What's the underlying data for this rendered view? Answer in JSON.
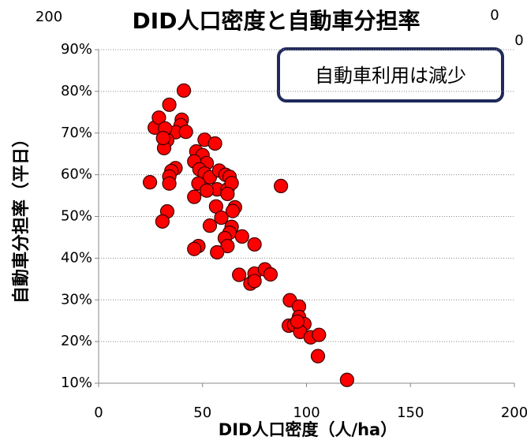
{
  "chart_data": {
    "type": "scatter",
    "title": "DID人口密度と自動車分担率",
    "x_label": "DID人口密度（人/ha）",
    "y_label": "自動車分担率（平日）",
    "annotation": "自動車利用は減少",
    "stray_labels": [
      "200",
      "0",
      "0"
    ],
    "series": [
      {
        "name": "DID",
        "color": "#ff0000",
        "x": [
          41,
          34,
          27,
          29,
          40,
          39.5,
          37,
          42,
          32,
          33,
          31.5,
          31,
          37,
          35,
          34,
          34,
          24.7,
          33,
          30.7,
          51,
          56,
          47,
          50,
          52,
          46,
          48.5,
          51,
          53.5,
          58,
          61,
          63,
          48,
          57,
          62,
          64,
          52,
          62,
          46,
          56.5,
          65.6,
          64.5,
          59,
          53.5,
          64,
          63,
          60.7,
          69,
          62,
          75,
          48,
          46,
          57,
          87.7,
          67.6,
          73,
          75,
          75,
          80,
          82.7,
          92,
          96.4,
          96.4,
          91.5,
          94,
          99,
          97,
          102,
          106,
          105.5,
          119.5,
          95.6
        ],
        "values": [
          80.2,
          76.8,
          71.3,
          73.7,
          73.2,
          71.9,
          70.2,
          70.3,
          71.1,
          68.3,
          66.4,
          68.8,
          61.6,
          60.9,
          59.6,
          57.9,
          58.2,
          51.2,
          48.8,
          68.4,
          67.5,
          65.6,
          64.7,
          62.8,
          63.2,
          61.3,
          60.3,
          59.4,
          61,
          60,
          59.5,
          57.9,
          56.5,
          56.5,
          58,
          56.2,
          55.4,
          54.7,
          52.4,
          52.2,
          51.3,
          49.7,
          47.8,
          47.5,
          46.1,
          44.8,
          45.2,
          42.9,
          43.3,
          42.9,
          42.2,
          41.4,
          57.3,
          36,
          33.9,
          36.3,
          34.5,
          37.3,
          36.1,
          29.9,
          28.4,
          25.9,
          23.8,
          24,
          24.2,
          22.3,
          21,
          21.6,
          16.5,
          10.8,
          24.8
        ]
      }
    ],
    "xlim": [
      0,
      200
    ],
    "xticks": [
      0,
      50,
      100,
      150,
      200
    ],
    "ylim": [
      10,
      90
    ],
    "yticks": [
      {
        "value": 10,
        "label": "10%"
      },
      {
        "value": 20,
        "label": "20%"
      },
      {
        "value": 30,
        "label": "30%"
      },
      {
        "value": 40,
        "label": "40%"
      },
      {
        "value": 50,
        "label": "50%"
      },
      {
        "value": 60,
        "label": "60%"
      },
      {
        "value": 70,
        "label": "70%"
      },
      {
        "value": 80,
        "label": "80%"
      },
      {
        "value": 90,
        "label": "90%"
      }
    ],
    "grid": true
  }
}
